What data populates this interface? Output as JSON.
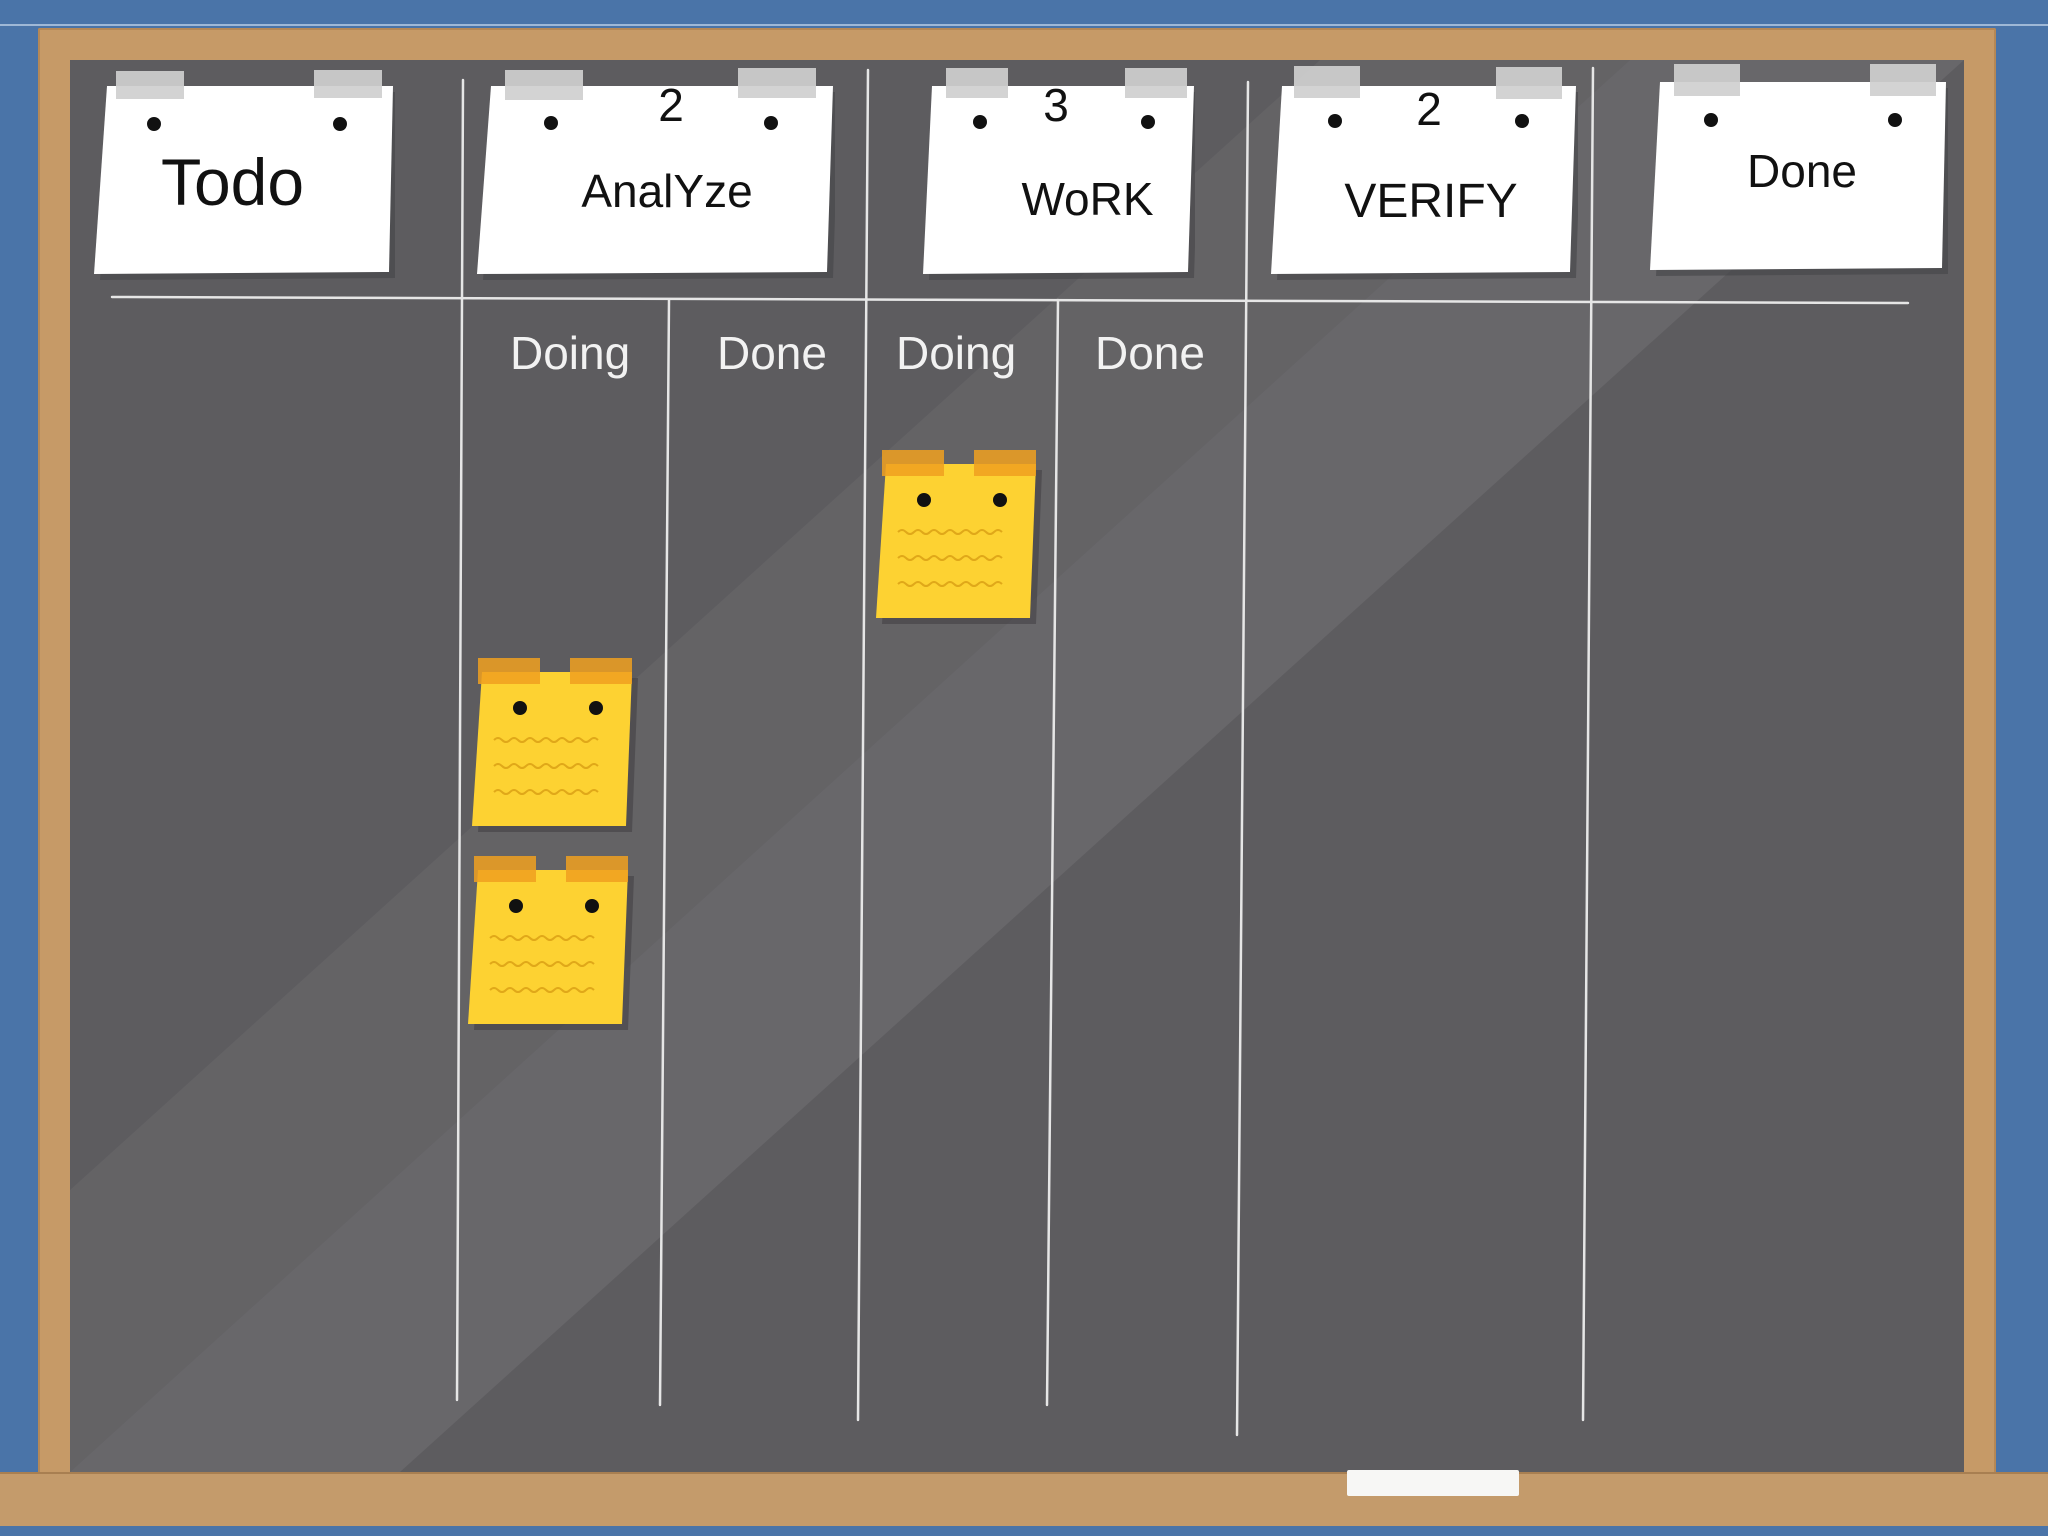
{
  "columns": [
    {
      "title": "Todo",
      "wip": ""
    },
    {
      "title": "AnalYze",
      "wip": "2"
    },
    {
      "title": "WoRK",
      "wip": "3"
    },
    {
      "title": "VERIFY",
      "wip": "2"
    },
    {
      "title": "Done",
      "wip": ""
    }
  ],
  "subcolumns": {
    "analyze_doing": "Doing",
    "analyze_done": "Done",
    "work_doing": "Doing",
    "work_done": "Done"
  },
  "cards": [
    {
      "column": "AnalYze",
      "lane": "Doing",
      "index": 1
    },
    {
      "column": "AnalYze",
      "lane": "Doing",
      "index": 2
    },
    {
      "column": "WoRK",
      "lane": "Doing",
      "index": 1
    }
  ],
  "colors": {
    "wall": "#4a74a8",
    "frame": "#c69a67",
    "board": "#5d5c5f",
    "chalk_line": "#e8e8e8",
    "sticky_note": "#fdd232",
    "sticky_tape": "#f0a020",
    "header_paper": "#ffffff",
    "header_tape": "#cfcfcf"
  }
}
